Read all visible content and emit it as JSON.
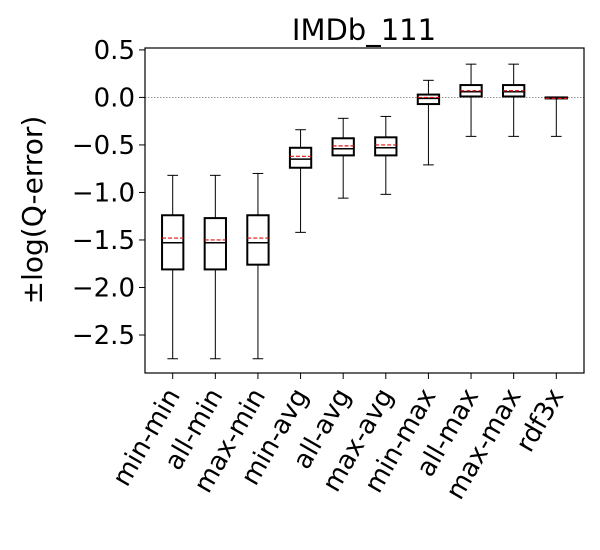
{
  "chart_data": {
    "type": "box",
    "title": "IMDb_111",
    "xlabel": "",
    "ylabel": "±log(Q-error)",
    "ylim": [
      -2.9,
      0.52
    ],
    "yticks": [
      0.5,
      0.0,
      -0.5,
      -1.0,
      -1.5,
      -2.0,
      -2.5
    ],
    "ytick_labels": [
      "0.5",
      "0.0",
      "−0.5",
      "−1.0",
      "−1.5",
      "−2.0",
      "−2.5"
    ],
    "reference_line": {
      "y": 0.0,
      "style": "dotted",
      "color": "#888888"
    },
    "mean_line": {
      "style": "dashed",
      "color": "#e01010"
    },
    "grid": false,
    "categories": [
      "min-min",
      "all-min",
      "max-min",
      "min-avg",
      "all-avg",
      "max-avg",
      "min-max",
      "all-max",
      "max-max",
      "rdf3x"
    ],
    "boxes": [
      {
        "label": "min-min",
        "whislo": -2.75,
        "q1": -1.81,
        "median": -1.53,
        "mean": -1.48,
        "q3": -1.24,
        "whishi": -0.82
      },
      {
        "label": "all-min",
        "whislo": -2.75,
        "q1": -1.81,
        "median": -1.53,
        "mean": -1.5,
        "q3": -1.27,
        "whishi": -0.82
      },
      {
        "label": "max-min",
        "whislo": -2.75,
        "q1": -1.76,
        "median": -1.53,
        "mean": -1.48,
        "q3": -1.24,
        "whishi": -0.8
      },
      {
        "label": "min-avg",
        "whislo": -1.42,
        "q1": -0.74,
        "median": -0.65,
        "mean": -0.62,
        "q3": -0.53,
        "whishi": -0.34
      },
      {
        "label": "all-avg",
        "whislo": -1.06,
        "q1": -0.61,
        "median": -0.54,
        "mean": -0.51,
        "q3": -0.43,
        "whishi": -0.22
      },
      {
        "label": "max-avg",
        "whislo": -1.02,
        "q1": -0.61,
        "median": -0.53,
        "mean": -0.5,
        "q3": -0.42,
        "whishi": -0.2
      },
      {
        "label": "min-max",
        "whislo": -0.71,
        "q1": -0.07,
        "median": -0.01,
        "mean": 0.0,
        "q3": 0.03,
        "whishi": 0.18
      },
      {
        "label": "all-max",
        "whislo": -0.41,
        "q1": 0.01,
        "median": 0.06,
        "mean": 0.07,
        "q3": 0.13,
        "whishi": 0.35
      },
      {
        "label": "max-max",
        "whislo": -0.41,
        "q1": 0.01,
        "median": 0.06,
        "mean": 0.07,
        "q3": 0.13,
        "whishi": 0.35
      },
      {
        "label": "rdf3x",
        "whislo": -0.41,
        "q1": -0.01,
        "median": -0.01,
        "mean": -0.01,
        "q3": 0.0,
        "whishi": 0.0
      }
    ]
  }
}
